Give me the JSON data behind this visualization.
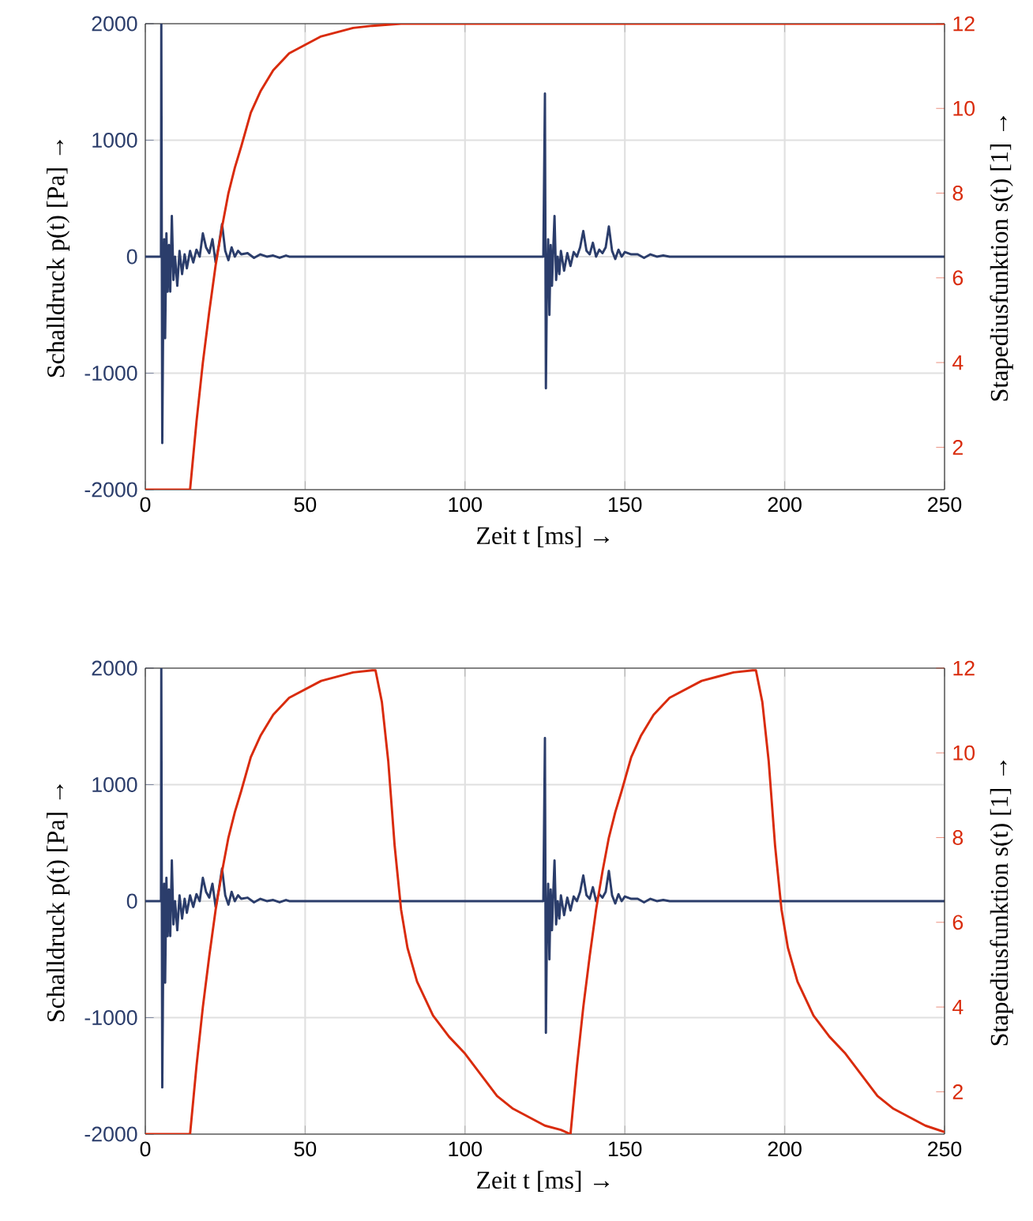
{
  "chart_data": [
    {
      "type": "line",
      "xlabel": "Zeit t [ms] →",
      "ylabel": "Schalldruck p(t) [Pa] →",
      "y2label": "Stapediusfunktion s(t) [1] →",
      "xlim": [
        0,
        250
      ],
      "xticks": [
        0,
        50,
        100,
        150,
        200,
        250
      ],
      "ylim": [
        -2000,
        2000
      ],
      "yticks": [
        -2000,
        -1000,
        0,
        1000,
        2000
      ],
      "y2lim": [
        1,
        12
      ],
      "y2ticks": [
        2,
        4,
        6,
        8,
        10,
        12
      ],
      "grid": true,
      "marker": "none",
      "line_style": "solid",
      "series": [
        {
          "color": "#2b3d6b",
          "x": [
            0,
            4.9,
            5,
            5.3,
            5.6,
            5.9,
            6.2,
            6.6,
            7,
            7.4,
            7.8,
            8.3,
            8.8,
            9.3,
            10,
            10.7,
            11.5,
            12.3,
            13,
            14,
            15,
            16,
            17,
            18,
            19,
            20,
            21,
            22,
            23,
            24,
            25,
            26,
            27,
            28,
            29,
            30,
            32,
            34,
            36,
            38,
            40,
            42,
            44,
            45,
            124.5,
            125,
            125.3,
            125.6,
            126,
            126.4,
            126.8,
            127.2,
            127.6,
            128,
            128.5,
            129,
            129.5,
            130,
            131,
            132,
            133,
            134,
            135,
            136,
            137,
            138,
            139,
            140,
            141,
            142,
            143,
            144,
            145,
            146,
            147,
            148,
            149,
            150,
            152,
            154,
            156,
            158,
            160,
            162,
            164,
            165,
            250
          ],
          "values": [
            0,
            0,
            2000,
            -1600,
            -500,
            150,
            -700,
            200,
            -300,
            100,
            -300,
            350,
            -200,
            0,
            -250,
            50,
            -150,
            20,
            -100,
            50,
            -50,
            60,
            0,
            200,
            80,
            30,
            150,
            -50,
            100,
            280,
            50,
            -30,
            80,
            0,
            50,
            20,
            30,
            -10,
            20,
            0,
            10,
            -10,
            10,
            0,
            0,
            1400,
            -1130,
            -300,
            150,
            -500,
            100,
            -250,
            60,
            350,
            -200,
            0,
            -150,
            50,
            -120,
            30,
            -80,
            40,
            0,
            80,
            220,
            50,
            20,
            120,
            0,
            60,
            30,
            80,
            260,
            50,
            -20,
            60,
            0,
            40,
            20,
            20,
            -10,
            20,
            0,
            10,
            0,
            0,
            0
          ]
        },
        {
          "color": "#d92b0c",
          "axis": "y2",
          "x": [
            0,
            14,
            16,
            18,
            20,
            22,
            24,
            26,
            28,
            30,
            33,
            36,
            40,
            45,
            50,
            55,
            60,
            65,
            71,
            80,
            100,
            250
          ],
          "values": [
            1,
            1,
            2.6,
            4.0,
            5.2,
            6.3,
            7.2,
            8.0,
            8.6,
            9.1,
            9.9,
            10.4,
            10.9,
            11.3,
            11.5,
            11.7,
            11.8,
            11.9,
            11.95,
            12,
            12,
            12
          ]
        }
      ]
    },
    {
      "type": "line",
      "xlabel": "Zeit t [ms] →",
      "ylabel": "Schalldruck p(t) [Pa] →",
      "y2label": "Stapediusfunktion s(t) [1] →",
      "xlim": [
        0,
        250
      ],
      "xticks": [
        0,
        50,
        100,
        150,
        200,
        250
      ],
      "ylim": [
        -2000,
        2000
      ],
      "yticks": [
        -2000,
        -1000,
        0,
        1000,
        2000
      ],
      "y2lim": [
        1,
        12
      ],
      "y2ticks": [
        2,
        4,
        6,
        8,
        10,
        12
      ],
      "grid": true,
      "marker": "none",
      "line_style": "solid",
      "series": [
        {
          "color": "#2b3d6b",
          "x": [
            0,
            4.9,
            5,
            5.3,
            5.6,
            5.9,
            6.2,
            6.6,
            7,
            7.4,
            7.8,
            8.3,
            8.8,
            9.3,
            10,
            10.7,
            11.5,
            12.3,
            13,
            14,
            15,
            16,
            17,
            18,
            19,
            20,
            21,
            22,
            23,
            24,
            25,
            26,
            27,
            28,
            29,
            30,
            32,
            34,
            36,
            38,
            40,
            42,
            44,
            45,
            124.5,
            125,
            125.3,
            125.6,
            126,
            126.4,
            126.8,
            127.2,
            127.6,
            128,
            128.5,
            129,
            129.5,
            130,
            131,
            132,
            133,
            134,
            135,
            136,
            137,
            138,
            139,
            140,
            141,
            142,
            143,
            144,
            145,
            146,
            147,
            148,
            149,
            150,
            152,
            154,
            156,
            158,
            160,
            162,
            164,
            165,
            250
          ],
          "values": [
            0,
            0,
            2000,
            -1600,
            -500,
            150,
            -700,
            200,
            -300,
            100,
            -300,
            350,
            -200,
            0,
            -250,
            50,
            -150,
            20,
            -100,
            50,
            -50,
            60,
            0,
            200,
            80,
            30,
            150,
            -50,
            100,
            280,
            50,
            -30,
            80,
            0,
            50,
            20,
            30,
            -10,
            20,
            0,
            10,
            -10,
            10,
            0,
            0,
            1400,
            -1130,
            -300,
            150,
            -500,
            100,
            -250,
            60,
            350,
            -200,
            0,
            -150,
            50,
            -120,
            30,
            -80,
            40,
            0,
            80,
            220,
            50,
            20,
            120,
            0,
            60,
            30,
            80,
            260,
            50,
            -20,
            60,
            0,
            40,
            20,
            20,
            -10,
            20,
            0,
            10,
            0,
            0,
            0
          ]
        },
        {
          "color": "#d92b0c",
          "axis": "y2",
          "x": [
            0,
            14,
            16,
            18,
            20,
            22,
            24,
            26,
            28,
            30,
            33,
            36,
            40,
            45,
            50,
            55,
            60,
            65,
            71,
            72,
            74,
            76,
            78,
            80,
            82,
            85,
            90,
            95,
            100,
            105,
            110,
            115,
            120,
            125,
            130,
            133,
            135,
            137,
            139,
            141,
            143,
            145,
            147,
            149,
            152,
            155,
            159,
            164,
            169,
            174,
            179,
            184,
            190,
            191,
            193,
            195,
            197,
            199,
            201,
            204,
            209,
            214,
            219,
            224,
            229,
            234,
            239,
            244,
            250
          ],
          "values": [
            1,
            1,
            2.6,
            4.0,
            5.2,
            6.3,
            7.2,
            8.0,
            8.6,
            9.1,
            9.9,
            10.4,
            10.9,
            11.3,
            11.5,
            11.7,
            11.8,
            11.9,
            11.95,
            11.95,
            11.2,
            9.8,
            7.8,
            6.3,
            5.4,
            4.6,
            3.8,
            3.3,
            2.9,
            2.4,
            1.9,
            1.6,
            1.4,
            1.2,
            1.1,
            1.0,
            2.6,
            4.0,
            5.2,
            6.3,
            7.2,
            8.0,
            8.6,
            9.1,
            9.9,
            10.4,
            10.9,
            11.3,
            11.5,
            11.7,
            11.8,
            11.9,
            11.95,
            11.95,
            11.2,
            9.8,
            7.8,
            6.3,
            5.4,
            4.6,
            3.8,
            3.3,
            2.9,
            2.4,
            1.9,
            1.6,
            1.4,
            1.2,
            1.05
          ]
        }
      ]
    }
  ]
}
